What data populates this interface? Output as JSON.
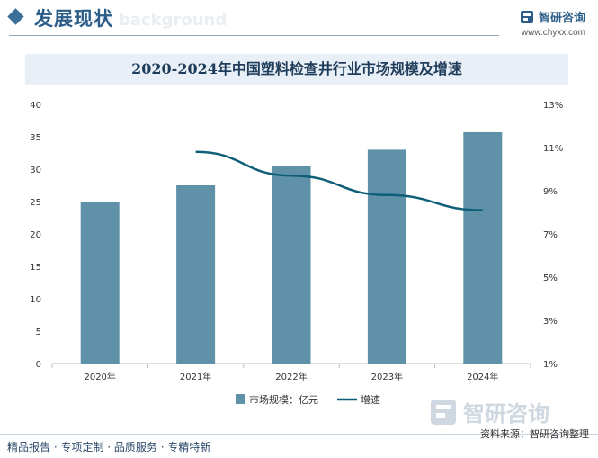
{
  "header": {
    "section_title": "发展现状",
    "ghost_title": "ent background",
    "brand_name": "智研咨询",
    "brand_url": "www.chyxx.com"
  },
  "chart_title": "2020-2024年中国塑料检查井行业市场规模及增速",
  "chart_data": {
    "type": "bar",
    "categories": [
      "2020年",
      "2021年",
      "2022年",
      "2023年",
      "2024年"
    ],
    "series": [
      {
        "name": "市场规模：亿元",
        "type": "bar",
        "axis": "left",
        "values": [
          25.0,
          27.5,
          30.5,
          33.0,
          35.7
        ]
      },
      {
        "name": "增速",
        "type": "line",
        "axis": "right",
        "values": [
          null,
          10.8,
          9.7,
          8.8,
          8.1
        ]
      }
    ],
    "y_left": {
      "ticks": [
        "0",
        "5",
        "10",
        "15",
        "20",
        "25",
        "30",
        "35",
        "40"
      ],
      "ylim": [
        0,
        40
      ]
    },
    "y_right": {
      "ticks": [
        "1%",
        "3%",
        "5%",
        "7%",
        "9%",
        "11%",
        "13%"
      ],
      "ylim": [
        1,
        13
      ]
    },
    "legend_position": "bottom",
    "grid": false,
    "colors": {
      "bar": "#5f92a9",
      "line": "#0f5e78"
    }
  },
  "watermark_text": "智研咨询",
  "footer": {
    "left": "精品报告 · 专项定制 · 品质服务 · 专精特新",
    "source": "资料来源：智研咨询整理"
  }
}
